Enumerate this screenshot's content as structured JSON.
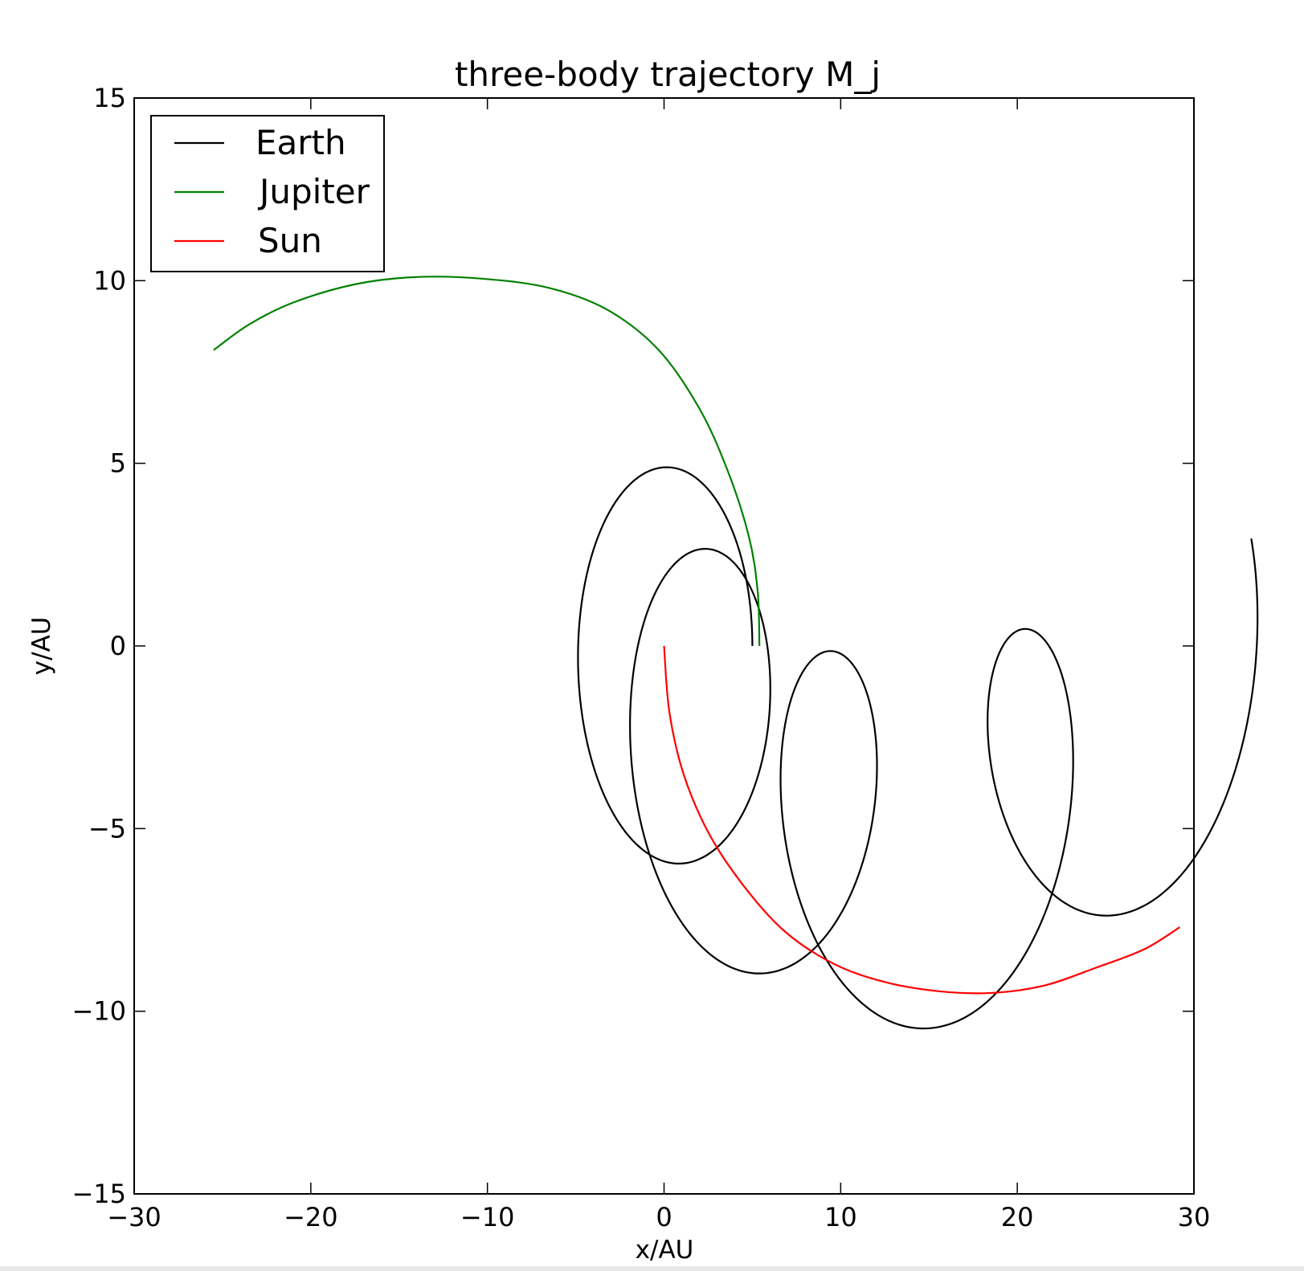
{
  "chart_data": {
    "type": "line",
    "title": "three-body trajectory M_j",
    "xlabel": "x/AU",
    "ylabel": "y/AU",
    "xlim": [
      -30,
      30
    ],
    "ylim": [
      -15,
      15
    ],
    "xticks": [
      -30,
      -20,
      -10,
      0,
      10,
      20,
      30
    ],
    "yticks": [
      -15,
      -10,
      -5,
      0,
      5,
      10,
      15
    ],
    "xtick_labels": [
      "−30",
      "−20",
      "−10",
      "0",
      "10",
      "20",
      "30"
    ],
    "ytick_labels": [
      "−15",
      "−10",
      "−5",
      "0",
      "5",
      "10",
      "15"
    ],
    "grid": false,
    "legend_position": "top-left",
    "series": [
      {
        "name": "Earth",
        "color": "#000000",
        "model": "orbit",
        "center_path": {
          "start": [
            0,
            0
          ],
          "angle_start_deg": 180,
          "angle_end_deg": 360,
          "radius_end": 14.6,
          "y_scale": 0.65
        },
        "orbit": {
          "radius": 5.0,
          "start_angle_deg": 0,
          "angular_speed_ratio": 4.1
        }
      },
      {
        "name": "Jupiter",
        "color": "#008000",
        "points": [
          [
            5.4,
            0.0
          ],
          [
            5.3,
            1.5
          ],
          [
            4.8,
            3.0
          ],
          [
            3.6,
            4.8
          ],
          [
            2.0,
            6.5
          ],
          [
            -0.3,
            8.1
          ],
          [
            -3.2,
            9.2
          ],
          [
            -6.5,
            9.8
          ],
          [
            -10.2,
            10.05
          ],
          [
            -14.0,
            10.1
          ],
          [
            -17.5,
            9.9
          ],
          [
            -21.0,
            9.4
          ],
          [
            -23.5,
            8.8
          ],
          [
            -25.5,
            8.1
          ]
        ]
      },
      {
        "name": "Sun",
        "color": "#ff0000",
        "points": [
          [
            0.0,
            0.0
          ],
          [
            0.3,
            -1.8
          ],
          [
            1.1,
            -3.5
          ],
          [
            2.5,
            -5.1
          ],
          [
            4.4,
            -6.5
          ],
          [
            6.8,
            -7.8
          ],
          [
            9.6,
            -8.7
          ],
          [
            12.5,
            -9.2
          ],
          [
            15.5,
            -9.45
          ],
          [
            18.5,
            -9.5
          ],
          [
            21.5,
            -9.3
          ],
          [
            24.5,
            -8.8
          ],
          [
            27.2,
            -8.3
          ],
          [
            29.2,
            -7.7
          ]
        ]
      }
    ]
  }
}
